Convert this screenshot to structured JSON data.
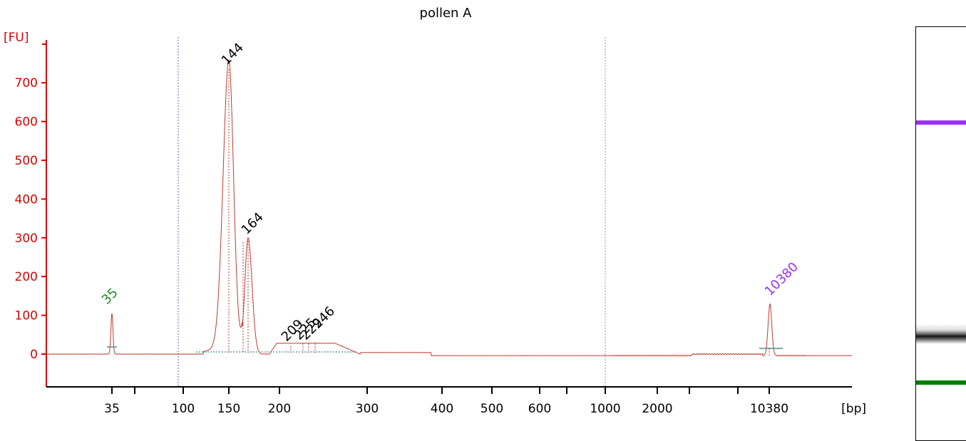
{
  "colors": {
    "trace": "#c0392b",
    "yaxis": "#dd0000",
    "lower_marker": "#228b22",
    "upper_marker": "#9b30ff",
    "peak_label": "#000000"
  },
  "chart_data": {
    "type": "line",
    "title": "pollen A",
    "ylabel": "[FU]",
    "xlabel": "[bp]",
    "y_ticks": [
      "0",
      "100",
      "200",
      "300",
      "400",
      "500",
      "600",
      "700"
    ],
    "x_ticks": [
      "35",
      "100",
      "150",
      "200",
      "300",
      "400",
      "500",
      "600",
      "1000",
      "2000",
      "10380"
    ],
    "ylim": [
      -90,
      800
    ],
    "x_scale": "electropherogram bp (non-linear)",
    "peaks": [
      {
        "label": "35",
        "size_bp": 35,
        "height_fu": 105,
        "type": "lower_marker"
      },
      {
        "label": "144",
        "size_bp": 144,
        "height_fu": 740,
        "type": "sample"
      },
      {
        "label": "164",
        "size_bp": 164,
        "height_fu": 300,
        "type": "sample"
      },
      {
        "label": "209",
        "size_bp": 209,
        "height_fu": 25,
        "type": "sample"
      },
      {
        "label": "225",
        "size_bp": 225,
        "height_fu": 30,
        "type": "sample"
      },
      {
        "label": "229",
        "size_bp": 229,
        "height_fu": 30,
        "type": "sample"
      },
      {
        "label": "246",
        "size_bp": 246,
        "height_fu": 30,
        "type": "sample"
      },
      {
        "label": "10380",
        "size_bp": 10380,
        "height_fu": 132,
        "type": "upper_marker"
      }
    ],
    "grid": false,
    "legend": "none"
  },
  "gel": {
    "upper_marker_color": "#9b30ff",
    "lower_marker_color": "#008000"
  }
}
